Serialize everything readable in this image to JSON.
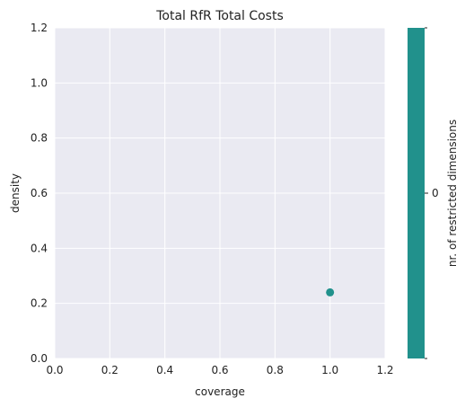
{
  "chart_data": {
    "type": "scatter",
    "title": "Total RfR Total Costs",
    "xlabel": "coverage",
    "ylabel": "density",
    "xlim": [
      0,
      1.2
    ],
    "ylim": [
      0,
      1.2
    ],
    "xticks": [
      0.0,
      0.2,
      0.4,
      0.6,
      0.8,
      1.0,
      1.2
    ],
    "yticks": [
      0.0,
      0.2,
      0.4,
      0.6,
      0.8,
      1.0,
      1.2
    ],
    "grid": true,
    "background": "#eaeaf2",
    "points": [
      {
        "x": 1.0,
        "y": 0.24,
        "color": "#21918c"
      }
    ],
    "colorbar": {
      "label": "nr. of restricted dimensions",
      "ticks": [
        "0"
      ],
      "color": "#21918c"
    }
  }
}
